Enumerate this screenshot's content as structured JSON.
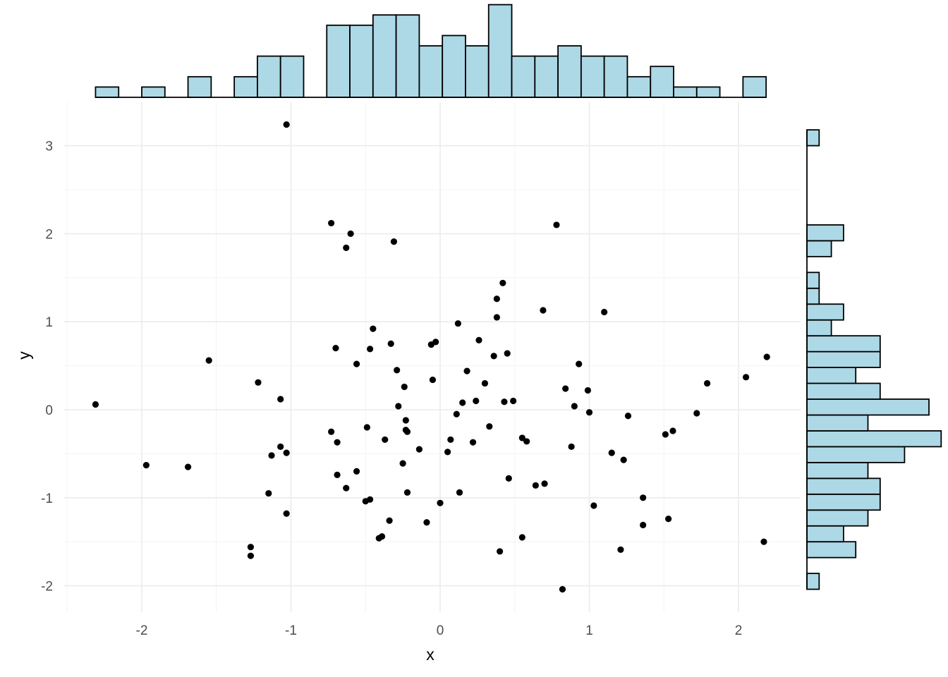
{
  "chart_data": {
    "type": "scatter",
    "title": "",
    "xlabel": "x",
    "ylabel": "y",
    "xlim": [
      -2.5,
      2.5
    ],
    "ylim": [
      -2.3,
      3.5
    ],
    "x_ticks": [
      -2,
      -1,
      0,
      1,
      2
    ],
    "x_tick_labels": [
      "-2",
      "-1",
      "0",
      "1",
      "2"
    ],
    "y_ticks": [
      -2,
      -1,
      0,
      1,
      2,
      3
    ],
    "y_tick_labels": [
      "-2",
      "-1",
      "0",
      "1",
      "2",
      "3"
    ],
    "grid": true,
    "colors": {
      "hist_fill": "#add8e6",
      "hist_stroke": "#000000",
      "point": "#000000",
      "grid": "#ebebeb"
    },
    "points": [
      [
        -2.31,
        0.06
      ],
      [
        -1.97,
        -0.63
      ],
      [
        -1.69,
        -0.65
      ],
      [
        -1.55,
        0.56
      ],
      [
        -1.27,
        -1.56
      ],
      [
        -1.27,
        -1.66
      ],
      [
        -1.22,
        0.31
      ],
      [
        -1.15,
        -0.95
      ],
      [
        -1.13,
        -0.52
      ],
      [
        -1.07,
        0.12
      ],
      [
        -1.07,
        -0.42
      ],
      [
        -1.03,
        3.24
      ],
      [
        -1.03,
        -0.49
      ],
      [
        -1.03,
        -1.18
      ],
      [
        -0.73,
        2.12
      ],
      [
        -0.73,
        -0.25
      ],
      [
        -0.7,
        0.7
      ],
      [
        -0.69,
        -0.37
      ],
      [
        -0.69,
        -0.74
      ],
      [
        -0.63,
        1.84
      ],
      [
        -0.63,
        -0.89
      ],
      [
        -0.6,
        2.0
      ],
      [
        -0.56,
        0.52
      ],
      [
        -0.56,
        -0.7
      ],
      [
        -0.5,
        -1.04
      ],
      [
        -0.49,
        -0.2
      ],
      [
        -0.47,
        0.69
      ],
      [
        -0.47,
        -1.02
      ],
      [
        -0.45,
        0.92
      ],
      [
        -0.41,
        -1.46
      ],
      [
        -0.39,
        -1.44
      ],
      [
        -0.37,
        -0.34
      ],
      [
        -0.34,
        -1.26
      ],
      [
        -0.33,
        0.75
      ],
      [
        -0.31,
        1.91
      ],
      [
        -0.29,
        0.45
      ],
      [
        -0.28,
        0.04
      ],
      [
        -0.25,
        -0.61
      ],
      [
        -0.24,
        0.26
      ],
      [
        -0.23,
        -0.12
      ],
      [
        -0.23,
        -0.23
      ],
      [
        -0.22,
        -0.25
      ],
      [
        -0.22,
        -0.94
      ],
      [
        -0.14,
        -0.45
      ],
      [
        -0.09,
        -1.28
      ],
      [
        -0.06,
        0.74
      ],
      [
        -0.05,
        0.34
      ],
      [
        -0.03,
        0.77
      ],
      [
        0.0,
        -1.06
      ],
      [
        0.05,
        -0.48
      ],
      [
        0.07,
        -0.34
      ],
      [
        0.11,
        -0.05
      ],
      [
        0.12,
        0.98
      ],
      [
        0.13,
        -0.94
      ],
      [
        0.15,
        0.08
      ],
      [
        0.18,
        0.44
      ],
      [
        0.22,
        -0.37
      ],
      [
        0.24,
        0.1
      ],
      [
        0.26,
        0.79
      ],
      [
        0.3,
        0.3
      ],
      [
        0.33,
        -0.19
      ],
      [
        0.36,
        0.61
      ],
      [
        0.38,
        1.05
      ],
      [
        0.38,
        1.26
      ],
      [
        0.4,
        -1.61
      ],
      [
        0.42,
        1.44
      ],
      [
        0.43,
        0.09
      ],
      [
        0.45,
        0.64
      ],
      [
        0.46,
        -0.78
      ],
      [
        0.49,
        0.1
      ],
      [
        0.55,
        -0.32
      ],
      [
        0.55,
        -1.45
      ],
      [
        0.58,
        -0.36
      ],
      [
        0.64,
        -0.86
      ],
      [
        0.69,
        1.13
      ],
      [
        0.7,
        -0.84
      ],
      [
        0.78,
        2.1
      ],
      [
        0.82,
        -2.04
      ],
      [
        0.84,
        0.24
      ],
      [
        0.88,
        -0.42
      ],
      [
        0.9,
        0.04
      ],
      [
        0.93,
        0.52
      ],
      [
        0.99,
        0.22
      ],
      [
        1.0,
        -0.03
      ],
      [
        1.03,
        -1.09
      ],
      [
        1.1,
        1.11
      ],
      [
        1.15,
        -0.49
      ],
      [
        1.21,
        -1.59
      ],
      [
        1.23,
        -0.57
      ],
      [
        1.26,
        -0.07
      ],
      [
        1.36,
        -1.0
      ],
      [
        1.36,
        -1.31
      ],
      [
        1.51,
        -0.28
      ],
      [
        1.53,
        -1.24
      ],
      [
        1.56,
        -0.24
      ],
      [
        1.72,
        -0.04
      ],
      [
        1.79,
        0.3
      ],
      [
        2.05,
        0.37
      ],
      [
        2.17,
        -1.5
      ],
      [
        2.19,
        0.6
      ]
    ],
    "x_hist": {
      "bin_width": 0.155,
      "bins": [
        [
          -2.31,
          1
        ],
        [
          -2.155,
          0
        ],
        [
          -2.0,
          1
        ],
        [
          -1.845,
          0
        ],
        [
          -1.69,
          2
        ],
        [
          -1.535,
          0
        ],
        [
          -1.38,
          2
        ],
        [
          -1.225,
          4
        ],
        [
          -1.07,
          4
        ],
        [
          -0.915,
          0
        ],
        [
          -0.76,
          7
        ],
        [
          -0.605,
          7
        ],
        [
          -0.45,
          8
        ],
        [
          -0.295,
          8
        ],
        [
          -0.14,
          5
        ],
        [
          0.015,
          6
        ],
        [
          0.17,
          5
        ],
        [
          0.325,
          9
        ],
        [
          0.48,
          4
        ],
        [
          0.635,
          4
        ],
        [
          0.79,
          5
        ],
        [
          0.945,
          4
        ],
        [
          1.1,
          4
        ],
        [
          1.255,
          2
        ],
        [
          1.41,
          3
        ],
        [
          1.565,
          1
        ],
        [
          1.72,
          1
        ],
        [
          1.875,
          0
        ],
        [
          2.03,
          2
        ]
      ]
    },
    "y_hist": {
      "bin_width": 0.18,
      "bins": [
        [
          -2.04,
          1
        ],
        [
          -1.86,
          0
        ],
        [
          -1.68,
          4
        ],
        [
          -1.5,
          3
        ],
        [
          -1.32,
          5
        ],
        [
          -1.14,
          6
        ],
        [
          -0.96,
          6
        ],
        [
          -0.78,
          5
        ],
        [
          -0.6,
          8
        ],
        [
          -0.42,
          11
        ],
        [
          -0.24,
          5
        ],
        [
          -0.06,
          10
        ],
        [
          0.12,
          6
        ],
        [
          0.3,
          4
        ],
        [
          0.48,
          6
        ],
        [
          0.66,
          6
        ],
        [
          0.84,
          2
        ],
        [
          1.02,
          3
        ],
        [
          1.2,
          1
        ],
        [
          1.38,
          1
        ],
        [
          1.56,
          0
        ],
        [
          1.74,
          2
        ],
        [
          1.92,
          3
        ],
        [
          2.1,
          0
        ],
        [
          2.28,
          0
        ],
        [
          2.46,
          0
        ],
        [
          2.64,
          0
        ],
        [
          2.82,
          0
        ],
        [
          3.0,
          1
        ]
      ]
    }
  }
}
